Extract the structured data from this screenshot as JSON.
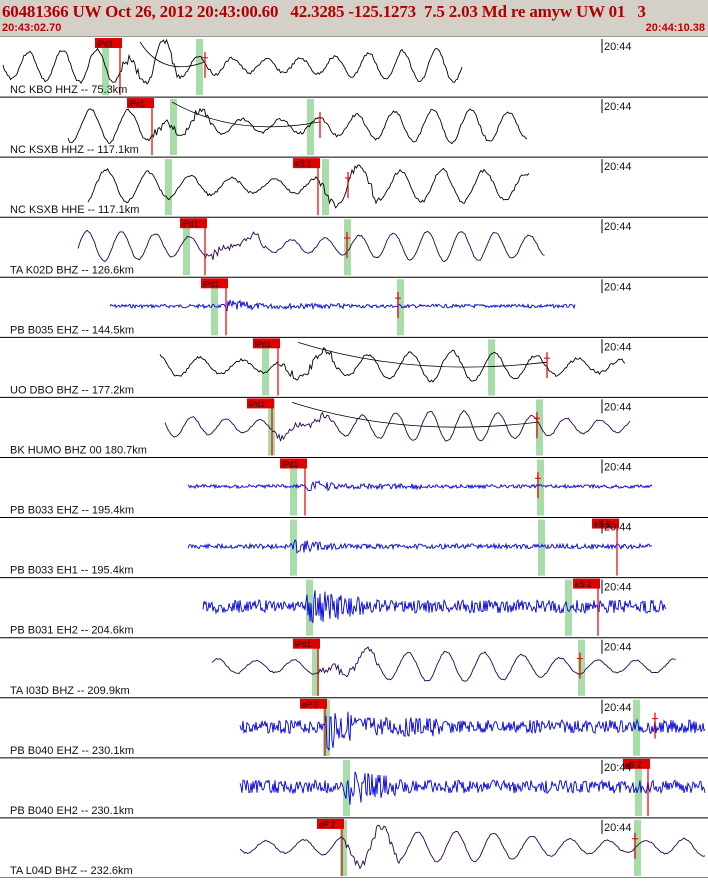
{
  "header": {
    "title": "60481366 UW Oct 26, 2012 20:43:00.60   42.3285 -125.1273  7.5 2.03 Md re amyw UW 01   3",
    "time_start": "20:43:02.70",
    "time_end": "20:44:10.38"
  },
  "colors": {
    "title": "#b00000",
    "pick": "#e00000",
    "window": "#a8dca8",
    "wave_bb": "#000000",
    "wave_purple": "#2a0050",
    "wave_sm": "#0000e0"
  },
  "traces": [
    {
      "label": "NC KBO HHZ -- 75.3km",
      "time_label": "20:44",
      "pick": "iPd1",
      "wave_type": "bb",
      "amplitude": 0.55,
      "arrival": "pick"
    },
    {
      "label": "NC KSXB HHZ -- 117.1km",
      "time_label": "20:44",
      "pick": "iPc1",
      "wave_type": "bb",
      "amplitude": 0.55,
      "arrival": "pick"
    },
    {
      "label": "NC KSXB HHE -- 117.1km",
      "time_label": "20:44",
      "pick": "eS 2",
      "wave_type": "bb",
      "amplitude": 0.55,
      "arrival": "pick"
    },
    {
      "label": "TA K02D BHZ -- 126.6km",
      "time_label": "20:44",
      "pick": "iPd1",
      "wave_type": "purple",
      "amplitude": 0.5,
      "arrival": "pick"
    },
    {
      "label": "PB B035 EHZ -- 144.5km",
      "time_label": "20:44",
      "pick": "iPd1",
      "wave_type": "sm",
      "amplitude": 0.06,
      "arrival": "pick"
    },
    {
      "label": "UO DBO BHZ -- 177.2km",
      "time_label": "20:44",
      "pick": "iPd1",
      "wave_type": "bb",
      "amplitude": 0.5,
      "arrival": "pick"
    },
    {
      "label": "BK HUMO BHZ 00 180.7km",
      "time_label": "20:44",
      "pick": "iPd1",
      "wave_type": "purple",
      "amplitude": 0.5,
      "arrival": "pick"
    },
    {
      "label": "PB B033 EHZ -- 195.4km",
      "time_label": "20:44",
      "pick": "iPd1",
      "wave_type": "sm",
      "amplitude": 0.06,
      "arrival": "pick"
    },
    {
      "label": "PB B033 EH1 -- 195.4km",
      "time_label": "20:44",
      "pick": "eS 2",
      "wave_type": "sm",
      "amplitude": 0.08,
      "arrival": "S"
    },
    {
      "label": "PB B031 EH2 -- 204.6km",
      "time_label": "20:44",
      "pick": "eS 2",
      "wave_type": "sm",
      "amplitude": 0.22,
      "arrival": "S"
    },
    {
      "label": "TA I03D BHZ -- 209.9km",
      "time_label": "20:44",
      "pick": "iPd1",
      "wave_type": "purple",
      "amplitude": 0.5,
      "arrival": "pick"
    },
    {
      "label": "PB B040 EHZ -- 230.1km",
      "time_label": "20:44",
      "pick": "eP 2",
      "wave_type": "sm",
      "amplitude": 0.22,
      "arrival": "pick"
    },
    {
      "label": "PB B040 EH2 -- 230.1km",
      "time_label": "20:44",
      "pick": "eS 2",
      "wave_type": "sm",
      "amplitude": 0.22,
      "arrival": "S"
    },
    {
      "label": "TA L04D BHZ -- 232.6km",
      "time_label": "20:44",
      "pick": "eP 2",
      "wave_type": "purple",
      "amplitude": 0.5,
      "arrival": "pick"
    }
  ]
}
